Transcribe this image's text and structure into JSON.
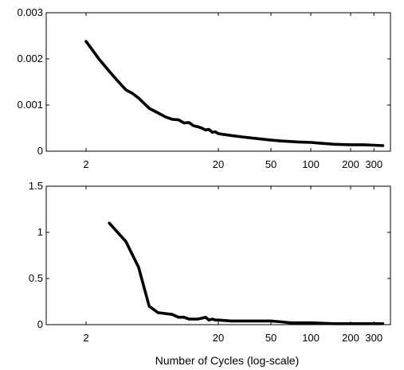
{
  "chart_data": [
    {
      "type": "line",
      "x_scale": "log",
      "xlim": [
        1,
        400
      ],
      "ylim": [
        0,
        0.003
      ],
      "xticks": [
        2,
        20,
        50,
        100,
        200,
        300
      ],
      "xtick_labels": [
        "2",
        "20",
        "50",
        "100",
        "200",
        "300"
      ],
      "yticks": [
        0,
        0.001,
        0.002,
        0.003
      ],
      "ytick_labels": [
        "0",
        "0.001",
        "0.002",
        "0.003"
      ],
      "grid": false,
      "series": [
        {
          "x": [
            2,
            2.5,
            3,
            3.5,
            4,
            4.5,
            5,
            6,
            7,
            8,
            9,
            10,
            11,
            12,
            13,
            14,
            15,
            16,
            17,
            18,
            19,
            20,
            25,
            30,
            40,
            50,
            60,
            70,
            80,
            100,
            120,
            150,
            200,
            250,
            300,
            350
          ],
          "y": [
            0.00238,
            0.002,
            0.00173,
            0.00151,
            0.00133,
            0.00125,
            0.00115,
            0.00093,
            0.00083,
            0.00074,
            0.00069,
            0.00068,
            0.00061,
            0.00062,
            0.00055,
            0.00053,
            0.0005,
            0.00046,
            0.00047,
            0.00041,
            0.00042,
            0.00038,
            0.00034,
            0.00031,
            0.00027,
            0.00024,
            0.00022,
            0.00021,
            0.0002,
            0.00019,
            0.00017,
            0.00015,
            0.00014,
            0.00014,
            0.00013,
            0.00012
          ],
          "color": "#000000"
        }
      ]
    },
    {
      "type": "line",
      "x_scale": "log",
      "xlim": [
        1,
        400
      ],
      "ylim": [
        0,
        1.5
      ],
      "xticks": [
        2,
        20,
        50,
        100,
        200,
        300
      ],
      "xtick_labels": [
        "2",
        "20",
        "50",
        "100",
        "200",
        "300"
      ],
      "yticks": [
        0,
        0.5,
        1,
        1.5
      ],
      "ytick_labels": [
        "0",
        "0.5",
        "1",
        "1.5"
      ],
      "xlabel": "Number of Cycles (log-scale)",
      "grid": false,
      "series": [
        {
          "x": [
            3,
            4,
            5,
            5.5,
            6,
            7,
            8,
            9,
            10,
            11,
            12,
            13,
            14,
            15,
            16,
            17,
            18,
            19,
            20,
            25,
            30,
            40,
            50,
            60,
            70,
            80,
            100,
            150,
            200,
            300,
            350
          ],
          "y": [
            1.1,
            0.9,
            0.62,
            0.4,
            0.2,
            0.13,
            0.12,
            0.11,
            0.08,
            0.08,
            0.06,
            0.06,
            0.06,
            0.07,
            0.08,
            0.05,
            0.06,
            0.05,
            0.05,
            0.04,
            0.04,
            0.04,
            0.04,
            0.03,
            0.02,
            0.02,
            0.02,
            0.01,
            0.01,
            0.01,
            0.01
          ],
          "color": "#000000"
        }
      ]
    }
  ]
}
